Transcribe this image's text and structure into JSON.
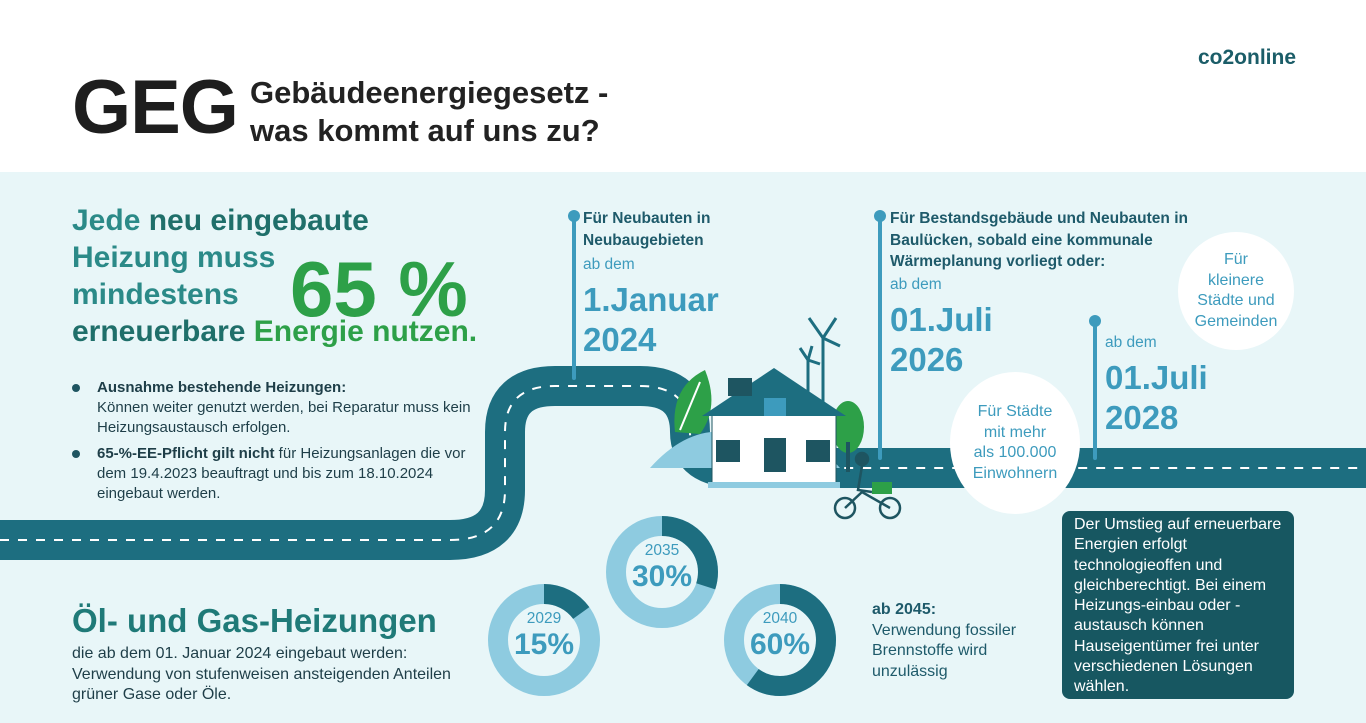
{
  "header": {
    "acronym": "GEG",
    "subtitle_line1": "Gebäudeenergiegesetz -",
    "subtitle_line2": "was kommt auf uns zu?",
    "brand": "co2online"
  },
  "headline": {
    "part1": "Jede ",
    "part2": "neu eingebaute",
    "line2": "Heizung muss",
    "line3": "mindestens",
    "part4a": "erneuerbare ",
    "part4b": "Energie",
    "part4c": " nutzen.",
    "percent": "65 %"
  },
  "bullets": [
    {
      "bold": "Ausnahme bestehende Heizungen:",
      "text": "Können weiter genutzt werden, bei Reparatur muss kein Heizungsaustausch erfolgen."
    },
    {
      "bold": "65-%-EE-Pflicht gilt nicht",
      "text": " für Heizungsanlagen die vor dem 19.4.2023 beauftragt und bis zum 18.10.2024 eingebaut werden."
    }
  ],
  "timeline": {
    "t1": {
      "head1": "Für Neubauten in",
      "head2": "Neubaugebieten",
      "ab": "ab dem",
      "date1": "1.Januar",
      "date2": "2024"
    },
    "t2": {
      "head1": "Für Bestandsgebäude und Neubauten in",
      "head2": "Baulücken, sobald eine kommunale",
      "head3": "Wärmeplanung vorliegt oder:",
      "ab": "ab dem",
      "date1": "01.Juli",
      "date2": "2026"
    },
    "t3": {
      "ab": "ab dem",
      "date1": "01.Juli",
      "date2": "2028"
    }
  },
  "bubbles": {
    "big_cities": [
      "Für Städte",
      "mit mehr",
      "als 100.000",
      "Einwohnern"
    ],
    "small_cities": [
      "Für",
      "kleinere",
      "Städte und",
      "Gemeinden"
    ]
  },
  "info_box": "Der Umstieg auf erneuerbare Energien erfolgt technologieoffen und gleichberechtigt. Bei einem Heizungs-einbau oder -austausch können Hauseigentümer frei unter verschiedenen Lösungen wählen.",
  "oel": {
    "title": "Öl- und Gas-Heizungen",
    "text": "die ab dem 01. Januar 2024 eingebaut werden: Verwendung von stufenweisen ansteigenden Anteilen grüner Gase oder Öle."
  },
  "donuts": [
    {
      "year": "2029",
      "percent": "15%",
      "value": 15
    },
    {
      "year": "2035",
      "percent": "30%",
      "value": 30
    },
    {
      "year": "2040",
      "percent": "60%",
      "value": 60
    }
  ],
  "final": {
    "bold": "ab 2045:",
    "text": "Verwendung fossiler Brennstoffe wird unzulässig"
  },
  "colors": {
    "dark_teal": "#175761",
    "road": "#1d6e80",
    "accent_blue": "#3d9bbd",
    "green": "#2da048",
    "light_panel": "#e8f6f8",
    "donut_light": "#8ecbe0"
  }
}
